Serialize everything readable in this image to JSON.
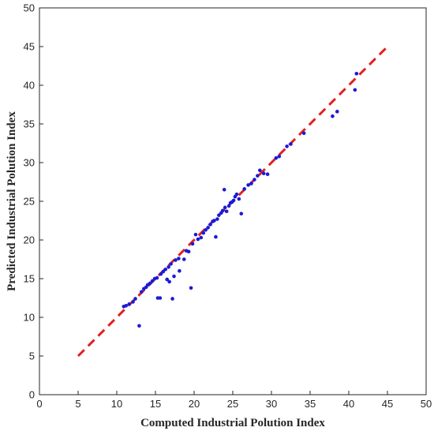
{
  "chart_data": {
    "type": "scatter",
    "xlabel": "Computed Industrial Polution Index",
    "ylabel": "Predicted Industrial Polution Index",
    "xlim": [
      0,
      50
    ],
    "ylim": [
      0,
      50
    ],
    "xticks": [
      0,
      5,
      10,
      15,
      20,
      25,
      30,
      35,
      40,
      45,
      50
    ],
    "yticks": [
      0,
      5,
      10,
      15,
      20,
      25,
      30,
      35,
      40,
      45,
      50
    ],
    "grid": false,
    "point_color": "#1a1ad6",
    "reference_line": {
      "x": [
        5,
        44.8
      ],
      "y": [
        5,
        44.8
      ],
      "color": "#e02020",
      "style": "dashed"
    },
    "series": [
      {
        "points": [
          [
            10.9,
            11.4
          ],
          [
            11.2,
            11.5
          ],
          [
            11.6,
            11.7
          ],
          [
            12.1,
            12.0
          ],
          [
            12.4,
            12.4
          ],
          [
            12.9,
            8.9
          ],
          [
            13.2,
            13.3
          ],
          [
            13.5,
            13.7
          ],
          [
            13.8,
            13.9
          ],
          [
            14.0,
            14.2
          ],
          [
            14.3,
            14.4
          ],
          [
            14.6,
            14.7
          ],
          [
            14.9,
            15.0
          ],
          [
            15.2,
            15.1
          ],
          [
            15.3,
            12.5
          ],
          [
            15.6,
            12.5
          ],
          [
            15.7,
            15.6
          ],
          [
            16.0,
            15.9
          ],
          [
            16.3,
            16.2
          ],
          [
            16.5,
            14.9
          ],
          [
            16.7,
            16.5
          ],
          [
            16.8,
            14.6
          ],
          [
            17.0,
            16.9
          ],
          [
            17.2,
            12.4
          ],
          [
            17.4,
            15.3
          ],
          [
            17.6,
            17.4
          ],
          [
            18.0,
            17.6
          ],
          [
            18.1,
            16.0
          ],
          [
            18.7,
            17.5
          ],
          [
            19.0,
            18.6
          ],
          [
            19.3,
            18.5
          ],
          [
            19.6,
            13.8
          ],
          [
            19.8,
            19.5
          ],
          [
            20.2,
            20.7
          ],
          [
            20.5,
            20.1
          ],
          [
            20.9,
            20.3
          ],
          [
            21.2,
            20.9
          ],
          [
            21.5,
            21.3
          ],
          [
            21.8,
            21.6
          ],
          [
            22.1,
            22.0
          ],
          [
            22.4,
            22.4
          ],
          [
            22.6,
            22.5
          ],
          [
            22.8,
            20.4
          ],
          [
            23.0,
            22.7
          ],
          [
            23.2,
            23.2
          ],
          [
            23.5,
            23.5
          ],
          [
            23.7,
            23.8
          ],
          [
            23.9,
            26.5
          ],
          [
            24.0,
            24.2
          ],
          [
            24.2,
            23.7
          ],
          [
            24.5,
            24.4
          ],
          [
            24.7,
            24.8
          ],
          [
            24.9,
            24.9
          ],
          [
            25.1,
            25.1
          ],
          [
            25.3,
            25.6
          ],
          [
            25.5,
            25.9
          ],
          [
            25.8,
            25.3
          ],
          [
            26.1,
            23.4
          ],
          [
            26.5,
            26.6
          ],
          [
            27.0,
            27.1
          ],
          [
            27.4,
            27.3
          ],
          [
            27.8,
            27.8
          ],
          [
            28.2,
            28.3
          ],
          [
            28.5,
            29.0
          ],
          [
            29.0,
            28.6
          ],
          [
            29.5,
            28.5
          ],
          [
            30.6,
            30.6
          ],
          [
            31.0,
            30.8
          ],
          [
            32.0,
            32.1
          ],
          [
            32.5,
            32.4
          ],
          [
            34.2,
            33.8
          ],
          [
            37.9,
            36.0
          ],
          [
            38.5,
            36.6
          ],
          [
            40.8,
            39.4
          ],
          [
            41.0,
            41.5
          ]
        ]
      }
    ]
  }
}
